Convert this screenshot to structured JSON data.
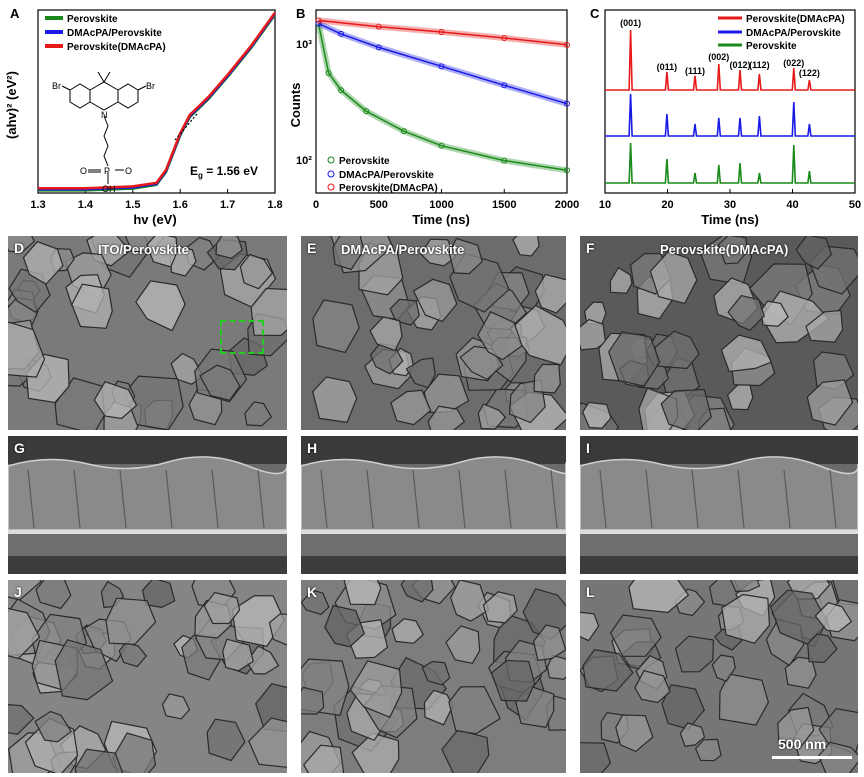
{
  "figure": {
    "panel_letters": {
      "A": "A",
      "B": "B",
      "C": "C",
      "D": "D",
      "E": "E",
      "F": "F",
      "G": "G",
      "H": "H",
      "I": "I",
      "J": "J",
      "K": "K",
      "L": "L"
    },
    "sem_titles": {
      "D": "ITO/Perovskite",
      "E": "DMAcPA/Perovskite",
      "F": "Perovskite(DMAcPA)"
    },
    "scale_bar": "500 nm",
    "colors": {
      "perovskite": "#1a8a1a",
      "dmacpa_perovskite": "#1a1ae6",
      "perovskite_dmacpa": "#e61a1a"
    }
  },
  "chart_data": [
    {
      "type": "line",
      "panel": "A",
      "xlabel": "hv (eV)",
      "ylabel": "(ahv)² (eV²)",
      "xlim": [
        1.3,
        1.8
      ],
      "xticks": [
        "1.3",
        "1.4",
        "1.5",
        "1.6",
        "1.7",
        "1.8"
      ],
      "legend": [
        "Perovskite",
        "DMAcPA/Perovskite",
        "Perovskite(DMAcPA)"
      ],
      "annotation": "E",
      "annotation_sub": "g",
      "annotation_rest": " = 1.56 eV",
      "molecule_labels": [
        "Br",
        "Br",
        "N",
        "P",
        "O",
        "OH",
        "O"
      ],
      "x": [
        1.3,
        1.4,
        1.5,
        1.55,
        1.57,
        1.6,
        1.62,
        1.64,
        1.66,
        1.7,
        1.75,
        1.8
      ],
      "y": [
        0.02,
        0.02,
        0.03,
        0.05,
        0.12,
        0.32,
        0.42,
        0.47,
        0.52,
        0.64,
        0.8,
        0.98
      ]
    },
    {
      "type": "scatter",
      "panel": "B",
      "xlabel": "Time (ns)",
      "ylabel": "Counts",
      "xlim": [
        0,
        2000
      ],
      "xticks": [
        "0",
        "500",
        "1000",
        "1500",
        "2000"
      ],
      "yticks": [
        "10²",
        "10³"
      ],
      "legend": [
        "Perovskite",
        "DMAcPA/Perovskite",
        "Perovskite(DMAcPA)"
      ],
      "series": [
        {
          "name": "Perovskite",
          "x": [
            20,
            100,
            200,
            400,
            700,
            1000,
            1500,
            2000
          ],
          "y": [
            1500,
            520,
            360,
            230,
            150,
            110,
            80,
            65
          ]
        },
        {
          "name": "DMAcPA/Perovskite",
          "x": [
            20,
            200,
            500,
            1000,
            1500,
            2000
          ],
          "y": [
            1500,
            1200,
            900,
            600,
            400,
            270
          ]
        },
        {
          "name": "Perovskite(DMAcPA)",
          "x": [
            20,
            500,
            1000,
            1500,
            2000
          ],
          "y": [
            1600,
            1400,
            1250,
            1100,
            950
          ]
        }
      ]
    },
    {
      "type": "line",
      "panel": "C",
      "xlabel": "Time (ns)",
      "xlim": [
        10,
        50
      ],
      "xticks": [
        "10",
        "20",
        "30",
        "40",
        "50"
      ],
      "legend": [
        "Perovskite(DMAcPA)",
        "DMAcPA/Perovskite",
        "Perovskite"
      ],
      "peak_labels": [
        "(001)",
        "(011)",
        "(111)",
        "(002)",
        "(012)",
        "(112)",
        "(022)",
        "(122)"
      ],
      "peak_positions": [
        14.1,
        19.9,
        24.4,
        28.2,
        31.6,
        34.7,
        40.2,
        42.7
      ]
    }
  ]
}
